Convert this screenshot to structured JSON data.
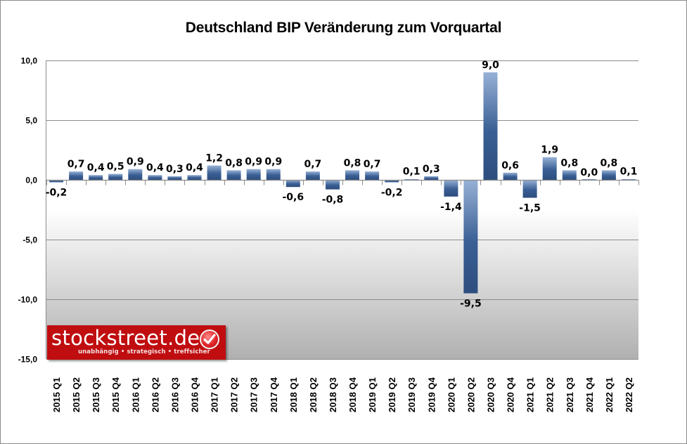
{
  "chart_data": {
    "type": "bar",
    "title": "Deutschland BIP Veränderung zum Vorquartal",
    "xlabel": "",
    "ylabel": "",
    "ylim": [
      -15,
      10
    ],
    "yticks": [
      10,
      5,
      0,
      -5,
      -10,
      -15
    ],
    "ytick_labels": [
      "10,0",
      "5,0",
      "0,0",
      "-5,0",
      "-10,0",
      "-15,0"
    ],
    "grid": true,
    "legend": "none",
    "categories": [
      "2015 Q1",
      "2015 Q2",
      "2015 Q3",
      "2015 Q4",
      "2016 Q1",
      "2016 Q2",
      "2016 Q3",
      "2016 Q4",
      "2017 Q1",
      "2017 Q2",
      "2017 Q3",
      "2017 Q4",
      "2018 Q1",
      "2018 Q2",
      "2018 Q3",
      "2018 Q4",
      "2019 Q1",
      "2019 Q2",
      "2019 Q3",
      "2019 Q4",
      "2020 Q1",
      "2020 Q2",
      "2020 Q3",
      "2020 Q4",
      "2021 Q1",
      "2021 Q2",
      "2021 Q3",
      "2021 Q4",
      "2022 Q1",
      "2022 Q2"
    ],
    "values": [
      -0.2,
      0.7,
      0.4,
      0.5,
      0.9,
      0.4,
      0.3,
      0.4,
      1.2,
      0.8,
      0.9,
      0.9,
      -0.6,
      0.7,
      -0.8,
      0.8,
      0.7,
      -0.2,
      0.1,
      0.3,
      -1.4,
      -9.5,
      9.0,
      0.6,
      -1.5,
      1.9,
      0.8,
      0.0,
      0.8,
      0.1
    ],
    "data_labels": [
      "-0,2",
      "0,7",
      "0,4",
      "0,5",
      "0,9",
      "0,4",
      "0,3",
      "0,4",
      "1,2",
      "0,8",
      "0,9",
      "0,9",
      "-0,6",
      "0,7",
      "-0,8",
      "0,8",
      "0,7",
      "-0,2",
      "0,1",
      "0,3",
      "-1,4",
      "-9,5",
      "9,0",
      "0,6",
      "-1,5",
      "1,9",
      "0,8",
      "0,0",
      "0,8",
      "0,1"
    ],
    "colors": {
      "bar_light": "#97b1d6",
      "bar_dark": "#2d4d7e",
      "grid": "#8c8c8c",
      "plot_bottom": "#b0b0b0"
    }
  },
  "watermark": {
    "name": "stockstreet.de",
    "tagline": "unabhängig • strategisch • treffsicher",
    "icon": "check-badge-icon",
    "color": "#c00d0f"
  }
}
